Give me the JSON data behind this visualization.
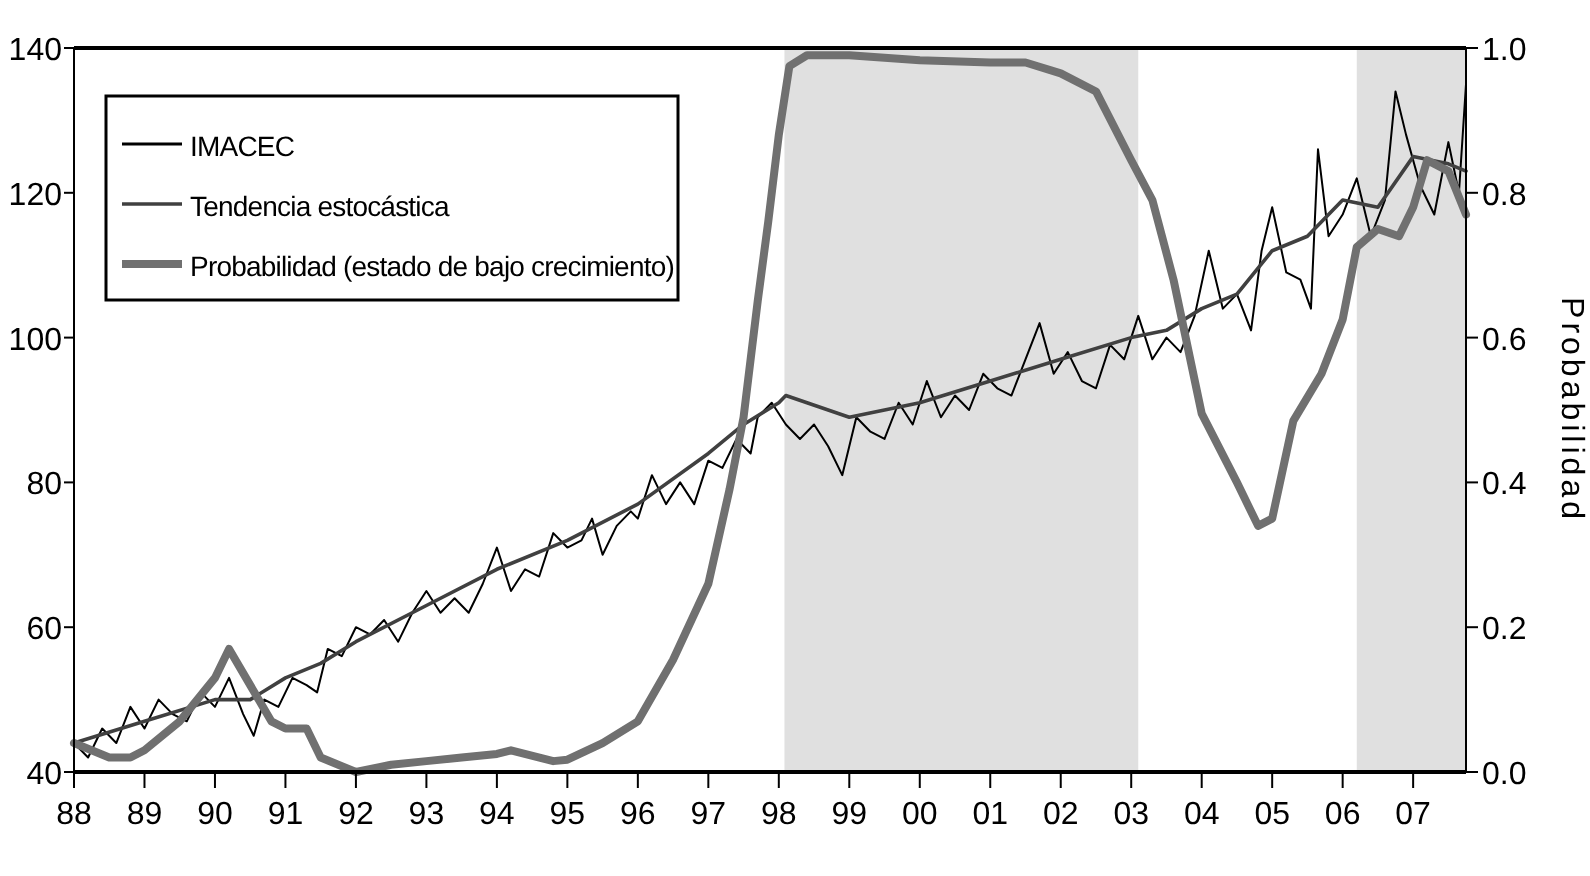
{
  "chart_data": {
    "type": "line",
    "y2label": "Probabilidad",
    "xlim": [
      1988,
      2007.75
    ],
    "xticks": [
      {
        "value": 1988,
        "label": "88"
      },
      {
        "value": 1989,
        "label": "89"
      },
      {
        "value": 1990,
        "label": "90"
      },
      {
        "value": 1991,
        "label": "91"
      },
      {
        "value": 1992,
        "label": "92"
      },
      {
        "value": 1993,
        "label": "93"
      },
      {
        "value": 1994,
        "label": "94"
      },
      {
        "value": 1995,
        "label": "95"
      },
      {
        "value": 1996,
        "label": "96"
      },
      {
        "value": 1997,
        "label": "97"
      },
      {
        "value": 1998,
        "label": "98"
      },
      {
        "value": 1999,
        "label": "99"
      },
      {
        "value": 2000,
        "label": "00"
      },
      {
        "value": 2001,
        "label": "01"
      },
      {
        "value": 2002,
        "label": "02"
      },
      {
        "value": 2003,
        "label": "03"
      },
      {
        "value": 2004,
        "label": "04"
      },
      {
        "value": 2005,
        "label": "05"
      },
      {
        "value": 2006,
        "label": "06"
      },
      {
        "value": 2007,
        "label": "07"
      }
    ],
    "ylim": [
      40,
      140
    ],
    "yticks": [
      40,
      60,
      80,
      100,
      120,
      140
    ],
    "y2lim": [
      0,
      1
    ],
    "y2ticks": [
      {
        "value": 0,
        "label": "0.0"
      },
      {
        "value": 0.2,
        "label": "0.2"
      },
      {
        "value": 0.4,
        "label": "0.4"
      },
      {
        "value": 0.6,
        "label": "0.6"
      },
      {
        "value": 0.8,
        "label": "0.8"
      },
      {
        "value": 1,
        "label": "1.0"
      }
    ],
    "grid": false,
    "legend": "top left",
    "marker": "none",
    "line_style": "solid",
    "bands": [
      {
        "axis": "x",
        "from": 1998.08,
        "to": 2003.1,
        "color": "#e0e0e0"
      },
      {
        "axis": "x",
        "from": 2006.2,
        "to": 2007.75,
        "color": "#e0e0e0"
      }
    ],
    "series": [
      {
        "name": "IMACEC",
        "color": "#000000",
        "x": [
          1988.0,
          1988.2,
          1988.4,
          1988.6,
          1988.8,
          1989.0,
          1989.2,
          1989.4,
          1989.6,
          1989.8,
          1990.0,
          1990.2,
          1990.4,
          1990.55,
          1990.7,
          1990.9,
          1991.1,
          1991.3,
          1991.45,
          1991.6,
          1991.8,
          1992.0,
          1992.2,
          1992.4,
          1992.6,
          1992.8,
          1993.0,
          1993.2,
          1993.4,
          1993.6,
          1993.8,
          1994.0,
          1994.2,
          1994.4,
          1994.6,
          1994.8,
          1995.0,
          1995.2,
          1995.35,
          1995.5,
          1995.7,
          1995.9,
          1996.0,
          1996.2,
          1996.4,
          1996.6,
          1996.8,
          1997.0,
          1997.2,
          1997.4,
          1997.6,
          1997.7,
          1997.9,
          1998.1,
          1998.3,
          1998.5,
          1998.7,
          1998.9,
          1999.1,
          1999.3,
          1999.5,
          1999.7,
          1999.9,
          2000.1,
          2000.3,
          2000.5,
          2000.7,
          2000.9,
          2001.1,
          2001.3,
          2001.5,
          2001.7,
          2001.9,
          2002.1,
          2002.3,
          2002.5,
          2002.7,
          2002.9,
          2003.1,
          2003.3,
          2003.5,
          2003.7,
          2003.9,
          2004.1,
          2004.3,
          2004.5,
          2004.7,
          2004.85,
          2005.0,
          2005.2,
          2005.4,
          2005.55,
          2005.65,
          2005.8,
          2006.0,
          2006.2,
          2006.4,
          2006.6,
          2006.75,
          2006.9,
          2007.1,
          2007.3,
          2007.5,
          2007.65,
          2007.75
        ],
        "values": [
          44,
          42,
          46,
          44,
          49,
          46,
          50,
          48,
          47,
          51,
          49,
          53,
          48,
          45,
          50,
          49,
          53,
          52,
          51,
          57,
          56,
          60,
          59,
          61,
          58,
          62,
          65,
          62,
          64,
          62,
          66,
          71,
          65,
          68,
          67,
          73,
          71,
          72,
          75,
          70,
          74,
          76,
          75,
          81,
          77,
          80,
          77,
          83,
          82,
          86,
          84,
          89,
          91,
          88,
          86,
          88,
          85,
          81,
          89,
          87,
          86,
          91,
          88,
          94,
          89,
          92,
          90,
          95,
          93,
          92,
          97,
          102,
          95,
          98,
          94,
          93,
          99,
          97,
          103,
          97,
          100,
          98,
          103,
          112,
          104,
          106,
          101,
          112,
          118,
          109,
          108,
          104,
          126,
          114,
          117,
          122,
          114,
          119,
          134,
          128,
          121,
          117,
          127,
          120,
          135
        ]
      },
      {
        "name": "Tendencia estocástica",
        "color": "#404040",
        "x": [
          1988.0,
          1989.0,
          1990.0,
          1990.5,
          1991.0,
          1991.5,
          1992.0,
          1993.0,
          1994.0,
          1995.0,
          1996.0,
          1997.0,
          1997.5,
          1998.0,
          1998.1,
          1999.0,
          1999.5,
          2000.0,
          2001.0,
          2002.0,
          2003.0,
          2003.5,
          2004.0,
          2004.5,
          2005.0,
          2005.5,
          2006.0,
          2006.5,
          2007.0,
          2007.5,
          2007.75
        ],
        "values": [
          44,
          47,
          50,
          50,
          53,
          55,
          58,
          63,
          68,
          72,
          77,
          84,
          88,
          91,
          92,
          89,
          90,
          91,
          94,
          97,
          100,
          101,
          104,
          106,
          112,
          114,
          119,
          118,
          125,
          124,
          123
        ]
      },
      {
        "name": "Probabilidad (estado de bajo crecimiento)",
        "color": "#707070",
        "axis": "y2",
        "x": [
          1988.0,
          1988.5,
          1988.8,
          1989.0,
          1989.5,
          1990.0,
          1990.2,
          1990.5,
          1990.8,
          1991.0,
          1991.3,
          1991.5,
          1992.0,
          1992.5,
          1993.0,
          1993.5,
          1994.0,
          1994.2,
          1994.8,
          1995.0,
          1995.5,
          1996.0,
          1996.5,
          1997.0,
          1997.3,
          1997.5,
          1997.7,
          1997.85,
          1998.0,
          1998.15,
          1998.4,
          1999.0,
          2000.0,
          2001.0,
          2001.5,
          2002.0,
          2002.5,
          2003.0,
          2003.3,
          2003.6,
          2004.0,
          2004.5,
          2004.8,
          2005.0,
          2005.3,
          2005.7,
          2006.0,
          2006.2,
          2006.5,
          2006.8,
          2007.0,
          2007.2,
          2007.5,
          2007.75
        ],
        "values": [
          0.04,
          0.02,
          0.02,
          0.03,
          0.07,
          0.13,
          0.17,
          0.12,
          0.07,
          0.06,
          0.06,
          0.02,
          0.0,
          0.01,
          0.015,
          0.02,
          0.025,
          0.03,
          0.015,
          0.017,
          0.04,
          0.07,
          0.155,
          0.26,
          0.39,
          0.49,
          0.65,
          0.76,
          0.88,
          0.975,
          0.99,
          0.99,
          0.983,
          0.98,
          0.98,
          0.965,
          0.94,
          0.845,
          0.79,
          0.68,
          0.495,
          0.4,
          0.34,
          0.35,
          0.485,
          0.55,
          0.625,
          0.725,
          0.75,
          0.74,
          0.78,
          0.845,
          0.83,
          0.77
        ]
      }
    ]
  }
}
